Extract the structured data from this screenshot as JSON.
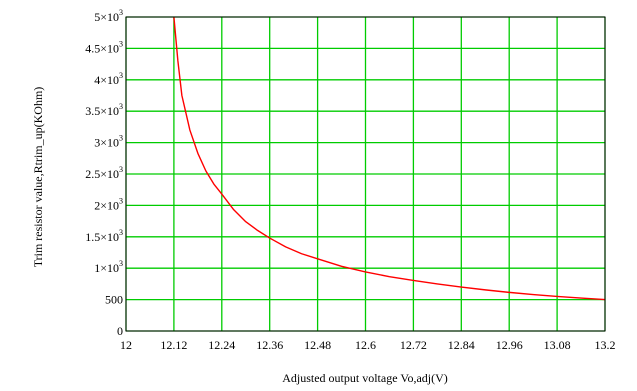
{
  "chart_data": {
    "type": "line",
    "title": "",
    "xlabel": "Adjusted output voltage Vo,adj(V)",
    "ylabel": "Trim resistor value,Rtrim_up(KOhm)",
    "xlim": [
      12,
      13.2
    ],
    "ylim": [
      0,
      5000
    ],
    "grid": true,
    "x_ticks": [
      "12",
      "12.12",
      "12.24",
      "12.36",
      "12.48",
      "12.6",
      "12.72",
      "12.84",
      "12.96",
      "13.08",
      "13.2"
    ],
    "y_ticks": [
      {
        "mant": "0",
        "exp": ""
      },
      {
        "mant": "500",
        "exp": ""
      },
      {
        "mant": "1×10",
        "exp": "3"
      },
      {
        "mant": "1.5×10",
        "exp": "3"
      },
      {
        "mant": "2×10",
        "exp": "3"
      },
      {
        "mant": "2.5×10",
        "exp": "3"
      },
      {
        "mant": "3×10",
        "exp": "3"
      },
      {
        "mant": "3.5×10",
        "exp": "3"
      },
      {
        "mant": "4×10",
        "exp": "3"
      },
      {
        "mant": "4.5×10",
        "exp": "3"
      },
      {
        "mant": "5×10",
        "exp": "3"
      }
    ],
    "series": [
      {
        "color": "#ff0000",
        "x": [
          12.12,
          12.13,
          12.14,
          12.16,
          12.18,
          12.2,
          12.22,
          12.24,
          12.27,
          12.3,
          12.33,
          12.36,
          12.4,
          12.44,
          12.48,
          12.54,
          12.6,
          12.66,
          12.72,
          12.78,
          12.84,
          12.9,
          12.96,
          13.02,
          13.08,
          13.14,
          13.2
        ],
        "y": [
          5000,
          4300,
          3750,
          3200,
          2830,
          2550,
          2340,
          2180,
          1930,
          1740,
          1600,
          1480,
          1340,
          1230,
          1150,
          1030,
          940,
          865,
          805,
          750,
          700,
          655,
          615,
          580,
          550,
          525,
          500
        ]
      }
    ],
    "colors": {
      "grid": "#00cc00",
      "axis": "#000000",
      "line": "#ff0000"
    }
  }
}
